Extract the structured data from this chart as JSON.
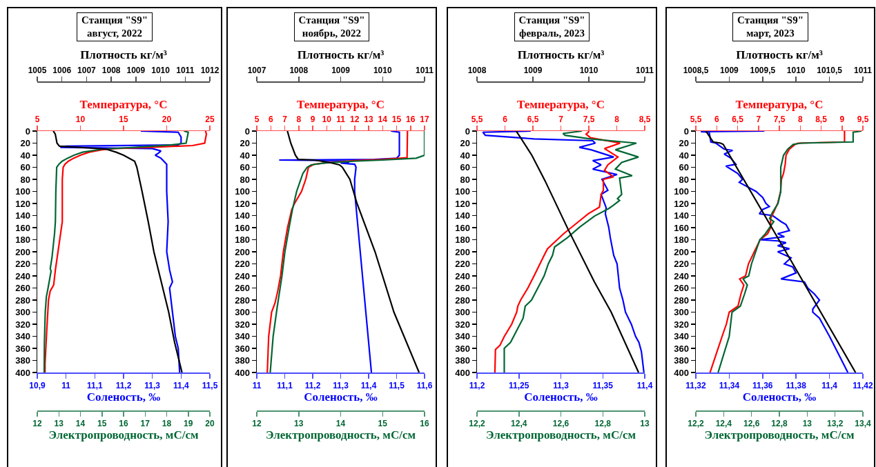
{
  "chart_data": [
    {
      "type": "line",
      "title": "Станция \"S9\"",
      "subtitle": "август, 2022",
      "xlabel": "Соленость, ‰",
      "x2label": "Температура, °C",
      "xlim": [
        10.9,
        11.5
      ],
      "xticks": [
        {
          "value": 10.9,
          "label": "10,9"
        },
        11,
        {
          "value": 11.1,
          "label": "11,1"
        },
        {
          "value": 11.2,
          "label": "11,2"
        },
        {
          "value": 11.3,
          "label": "11,3"
        },
        {
          "value": 11.4,
          "label": "11,4"
        },
        {
          "value": 11.5,
          "label": "11,5"
        }
      ],
      "x2lim": [
        5,
        25
      ],
      "x2ticks": [
        5,
        10,
        15,
        20,
        25
      ],
      "ylim": [
        400,
        0
      ],
      "yticks": [
        0,
        20,
        40,
        60,
        80,
        100,
        120,
        140,
        160,
        180,
        200,
        220,
        240,
        260,
        280,
        300,
        320,
        340,
        360,
        380,
        400
      ],
      "series": [
        {
          "color": "#ff0000",
          "axis": "x2",
          "x": [
            24.5,
            24.6,
            24.4,
            23,
            18,
            14,
            12.5,
            11,
            10,
            9.2,
            8.6,
            8.2,
            8.0,
            7.9,
            7.9,
            7.8,
            7.6,
            7.4,
            7.1,
            6.9,
            6.5,
            6.3,
            6.1,
            5.9,
            5.9
          ],
          "values": [
            0,
            5,
            20,
            24,
            27,
            29,
            31,
            35,
            40,
            45,
            50,
            55,
            60,
            80,
            150,
            160,
            180,
            200,
            230,
            255,
            265,
            280,
            330,
            385,
            400
          ]
        },
        {
          "color": "#0000ff",
          "x": [
            11.26,
            11.39,
            11.4,
            11.4,
            11.39,
            11.0,
            10.98,
            11.3,
            11.33,
            11.32,
            11.31,
            11.33,
            11.34,
            11.35,
            11.35,
            11.355,
            11.35,
            11.36,
            11.37,
            11.36,
            11.37,
            11.38,
            11.39,
            11.395
          ],
          "values": [
            0,
            2,
            10,
            20,
            23,
            25,
            27,
            29,
            33,
            37,
            40,
            45,
            50,
            55,
            100,
            150,
            200,
            230,
            250,
            260,
            300,
            340,
            360,
            400
          ]
        }
      ]
    },
    {
      "type": "line",
      "tick_labels": "x",
      "xlabel": "Электропроводность, мС/см",
      "x2label": "Плотность кг/м³",
      "xlim": [
        12,
        20
      ],
      "xticks": [
        12,
        13,
        14,
        15,
        16,
        17,
        18,
        19,
        20
      ],
      "x2lim": [
        1005,
        1012
      ],
      "x2ticks": [
        1005,
        1006,
        1007,
        1008,
        1009,
        1010,
        1011,
        1012
      ],
      "ylim": [
        400,
        0
      ],
      "yticks": [
        0,
        20,
        40,
        60,
        80,
        100,
        120,
        140,
        160,
        180,
        200,
        220,
        240,
        260,
        280,
        300,
        320,
        340,
        360,
        380,
        400
      ],
      "series": [
        {
          "color": "#000000",
          "axis": "x2",
          "x": [
            1005.65,
            1005.73,
            1005.8,
            1005.9,
            1007.1,
            1007.8,
            1008.2,
            1008.5,
            1008.95,
            1009.04,
            1009.25,
            1009.5,
            1009.73,
            1009.91,
            1010.33,
            1010.57,
            1010.87
          ],
          "values": [
            0,
            5,
            20,
            25,
            28,
            30,
            35,
            40,
            50,
            60,
            100,
            150,
            200,
            230,
            300,
            350,
            400
          ]
        },
        {
          "color": "#006633",
          "x": [
            18.8,
            19.0,
            18.9,
            18.2,
            16.5,
            15.0,
            14.1,
            13.7,
            13.4,
            13.15,
            13.0,
            12.9,
            12.86,
            12.84,
            12.8,
            12.74,
            12.68,
            12.6,
            12.64,
            12.6,
            12.5,
            12.42,
            12.37,
            12.33,
            12.32
          ],
          "values": [
            0,
            2,
            20,
            23,
            27,
            30,
            35,
            40,
            45,
            50,
            55,
            60,
            100,
            150,
            170,
            190,
            210,
            228,
            232,
            240,
            260,
            275,
            300,
            350,
            400
          ]
        }
      ]
    },
    {
      "type": "line",
      "title": "Станция \"S9\"",
      "subtitle": "ноябрь, 2022",
      "xlabel": "Соленость, ‰",
      "x2label": "Температура, °C",
      "xlim": [
        11,
        11.6
      ],
      "xticks": [
        11,
        {
          "value": 11.1,
          "label": "11,1"
        },
        {
          "value": 11.2,
          "label": "11,2"
        },
        {
          "value": 11.3,
          "label": "11,3"
        },
        {
          "value": 11.4,
          "label": "11,4"
        },
        {
          "value": 11.5,
          "label": "11,5"
        },
        {
          "value": 11.6,
          "label": "11,6"
        }
      ],
      "x2lim": [
        5,
        17
      ],
      "x2ticks": [
        5,
        6,
        7,
        8,
        9,
        10,
        11,
        12,
        13,
        14,
        15,
        16,
        17
      ],
      "ylim": [
        400,
        0
      ],
      "yticks": [
        0,
        20,
        40,
        60,
        80,
        100,
        120,
        140,
        160,
        180,
        200,
        220,
        240,
        260,
        280,
        300,
        320,
        340,
        360,
        380,
        400
      ],
      "series": [
        {
          "color": "#ff0000",
          "axis": "x2",
          "x": [
            15.78,
            15.75,
            14,
            12,
            10.2,
            9.1,
            8.7,
            8.5,
            8.2,
            7.7,
            7.5,
            7.2,
            6.9,
            6.7,
            6.5,
            6.3,
            6.06,
            5.85,
            5.75
          ],
          "values": [
            0,
            44,
            47,
            49,
            52,
            55,
            60,
            80,
            100,
            120,
            130,
            160,
            200,
            240,
            265,
            285,
            300,
            340,
            400
          ]
        },
        {
          "color": "#0000ff",
          "x": [
            11.48,
            11.51,
            11.51,
            11.5,
            11.42,
            11.08,
            11.31,
            11.33,
            11.3,
            11.35,
            11.355,
            11.35,
            11.35,
            11.36,
            11.37,
            11.38,
            11.39,
            11.4,
            11.41
          ],
          "values": [
            0,
            2,
            40,
            45,
            47,
            48,
            49,
            52,
            53,
            55,
            60,
            80,
            100,
            150,
            200,
            250,
            300,
            350,
            400
          ]
        }
      ]
    },
    {
      "type": "line",
      "tick_labels": "x",
      "xlabel": "Электропроводность, мС/см",
      "x2label": "Плотность кг/м³",
      "xlim": [
        12,
        16
      ],
      "xticks": [
        12,
        13,
        14,
        15,
        16
      ],
      "x2lim": [
        1007,
        1011
      ],
      "x2ticks": [
        1007,
        1008,
        1009,
        1010,
        1011
      ],
      "ylim": [
        400,
        0
      ],
      "yticks": [
        0,
        20,
        40,
        60,
        80,
        100,
        120,
        140,
        160,
        180,
        200,
        220,
        240,
        260,
        280,
        300,
        320,
        340,
        360,
        380,
        400
      ],
      "series": [
        {
          "color": "#000000",
          "axis": "x2",
          "x": [
            1007.73,
            1007.81,
            1007.92,
            1007.99,
            1008.37,
            1008.73,
            1008.97,
            1009.04,
            1009.22,
            1009.39,
            1009.82,
            1010.27,
            1010.87
          ],
          "values": [
            0,
            20,
            40,
            47,
            48,
            52,
            56,
            60,
            80,
            120,
            200,
            300,
            400
          ]
        },
        {
          "color": "#006633",
          "x": [
            16.0,
            16.0,
            15.8,
            15,
            14.3,
            13.6,
            13.3,
            13.2,
            13.1,
            12.95,
            12.85,
            12.77,
            12.67,
            12.6,
            12.49,
            12.39,
            12.32
          ],
          "values": [
            0,
            40,
            45,
            48,
            50,
            53,
            56,
            60,
            70,
            100,
            130,
            160,
            200,
            240,
            290,
            340,
            400
          ]
        }
      ]
    },
    {
      "type": "line",
      "title": "Станция \"S9\"",
      "subtitle": "февраль, 2023",
      "xlabel": "Соленость, ‰",
      "x2label": "Температура, °C",
      "xlim": [
        11.2,
        11.4
      ],
      "xticks": [
        {
          "value": 11.2,
          "label": "11,2"
        },
        {
          "value": 11.25,
          "label": "11,25"
        },
        {
          "value": 11.3,
          "label": "11,3"
        },
        {
          "value": 11.35,
          "label": "11,35"
        },
        {
          "value": 11.4,
          "label": "11,4"
        }
      ],
      "x2lim": [
        5.5,
        8.5
      ],
      "x2ticks": [
        {
          "value": 5.5,
          "label": "5,5"
        },
        6,
        {
          "value": 6.5,
          "label": "6,5"
        },
        7,
        {
          "value": 7.5,
          "label": "7,5"
        },
        8,
        {
          "value": 8.5,
          "label": "8,5"
        }
      ],
      "ylim": [
        400,
        0
      ],
      "yticks": [
        0,
        20,
        40,
        60,
        80,
        100,
        120,
        140,
        160,
        180,
        200,
        220,
        240,
        260,
        280,
        300,
        320,
        340,
        360,
        380,
        400
      ],
      "series": [
        {
          "color": "#ff0000",
          "axis": "x2",
          "x": [
            7.5,
            7.49,
            7.45,
            7.53,
            8.06,
            7.78,
            8.02,
            7.84,
            7.78,
            7.94,
            7.76,
            7.76,
            7.72,
            7.69,
            7.49,
            7.29,
            7.05,
            6.76,
            6.7,
            6.52,
            6.41,
            6.28,
            6.23,
            6.21,
            6.12,
            5.99,
            5.91,
            5.83,
            5.82
          ],
          "values": [
            0,
            2,
            5,
            11,
            20,
            29,
            43,
            56,
            65,
            76,
            80,
            98,
            105,
            126,
            137,
            152,
            170,
            195,
            206,
            240,
            260,
            280,
            290,
            300,
            320,
            340,
            355,
            362,
            400
          ]
        },
        {
          "color": "#0000ff",
          "x": [
            11.264,
            11.207,
            11.21,
            11.268,
            11.338,
            11.341,
            11.322,
            11.336,
            11.363,
            11.338,
            11.348,
            11.338,
            11.367,
            11.349,
            11.356,
            11.348,
            11.354,
            11.353,
            11.357,
            11.359,
            11.363,
            11.367,
            11.37,
            11.374,
            11.377,
            11.384,
            11.389,
            11.393,
            11.396,
            11.399
          ],
          "values": [
            0,
            2,
            7,
            13,
            16,
            20,
            27,
            31,
            43,
            49,
            56,
            63,
            72,
            80,
            98,
            105,
            127,
            137,
            159,
            177,
            206,
            220,
            260,
            280,
            300,
            320,
            340,
            350,
            365,
            400
          ]
        }
      ]
    },
    {
      "type": "line",
      "tick_labels": "x",
      "xlabel": "Электропроводность, мС/см",
      "x2label": "Плотность кг/м³",
      "xlim": [
        12.2,
        13
      ],
      "xticks": [
        {
          "value": 12.2,
          "label": "12,2"
        },
        {
          "value": 12.4,
          "label": "12,4"
        },
        {
          "value": 12.6,
          "label": "12,6"
        },
        {
          "value": 12.8,
          "label": "12,8"
        },
        13
      ],
      "x2lim": [
        1008,
        1011
      ],
      "x2ticks": [
        1008,
        1009,
        1010,
        1011
      ],
      "ylim": [
        400,
        0
      ],
      "yticks": [
        0,
        20,
        40,
        60,
        80,
        100,
        120,
        140,
        160,
        180,
        200,
        220,
        240,
        260,
        280,
        300,
        320,
        340,
        360,
        380,
        400
      ],
      "series": [
        {
          "color": "#000000",
          "axis": "x2",
          "x": [
            1008.7,
            1008.78,
            1008.98,
            1009.22,
            1009.63,
            1010.1,
            1010.4,
            1010.89
          ],
          "values": [
            0,
            11,
            40,
            83,
            163,
            250,
            300,
            400
          ]
        },
        {
          "color": "#006633",
          "x": [
            12.7,
            12.61,
            12.62,
            12.74,
            12.96,
            12.86,
            12.97,
            12.89,
            12.86,
            12.94,
            12.88,
            12.89,
            12.87,
            12.88,
            12.85,
            12.83,
            12.76,
            12.69,
            12.63,
            12.57,
            12.56,
            12.54,
            12.52,
            12.49,
            12.46,
            12.43,
            12.42,
            12.39,
            12.36,
            12.33,
            12.33
          ],
          "values": [
            0,
            4,
            7,
            13,
            20,
            31,
            43,
            52,
            63,
            74,
            78,
            105,
            112,
            115,
            123,
            128,
            141,
            159,
            177,
            192,
            206,
            220,
            240,
            260,
            280,
            290,
            310,
            330,
            350,
            360,
            400
          ]
        }
      ]
    },
    {
      "type": "line",
      "title": "Станция \"S9\"",
      "subtitle": "март, 2023",
      "xlabel": "Соленость, ‰",
      "x2label": "Температура, °C",
      "xlim": [
        11.32,
        11.42
      ],
      "xticks": [
        {
          "value": 11.32,
          "label": "11,32"
        },
        {
          "value": 11.34,
          "label": "11,34"
        },
        {
          "value": 11.36,
          "label": "11,36"
        },
        {
          "value": 11.38,
          "label": "11,38"
        },
        {
          "value": 11.4,
          "label": "11,4"
        },
        {
          "value": 11.42,
          "label": "11,42"
        }
      ],
      "x2lim": [
        5.5,
        9.5
      ],
      "x2ticks": [
        {
          "value": 5.5,
          "label": "5,5"
        },
        6,
        {
          "value": 6.5,
          "label": "6,5"
        },
        7,
        {
          "value": 7.5,
          "label": "7,5"
        },
        8,
        {
          "value": 8.5,
          "label": "8,5"
        },
        9,
        {
          "value": 9.5,
          "label": "9,5"
        }
      ],
      "ylim": [
        400,
        0
      ],
      "yticks": [
        0,
        20,
        40,
        60,
        80,
        100,
        120,
        140,
        160,
        180,
        200,
        220,
        240,
        260,
        280,
        300,
        320,
        340,
        360,
        380,
        400
      ],
      "series": [
        {
          "color": "#ff0000",
          "axis": "x2",
          "x": [
            9.06,
            9.06,
            7.95,
            7.88,
            7.74,
            7.66,
            7.64,
            7.6,
            7.55,
            7.53,
            7.46,
            7.36,
            7.29,
            7.29,
            7.22,
            7.04,
            6.97,
            6.9,
            6.76,
            6.69,
            6.55,
            6.65,
            6.58,
            6.51,
            6.3,
            6.23,
            6.13,
            5.84
          ],
          "values": [
            0,
            18,
            20,
            22,
            30,
            40,
            55,
            70,
            80,
            100,
            120,
            135,
            145,
            160,
            170,
            180,
            190,
            200,
            220,
            240,
            245,
            255,
            270,
            290,
            300,
            320,
            340,
            400
          ]
        },
        {
          "color": "#0000ff",
          "x": [
            11.361,
            11.323,
            11.328,
            11.329,
            11.332,
            11.337,
            11.342,
            11.337,
            11.341,
            11.344,
            11.338,
            11.345,
            11.348,
            11.346,
            11.356,
            11.36,
            11.362,
            11.364,
            11.36,
            11.358,
            11.366,
            11.371,
            11.374,
            11.376,
            11.369,
            11.373,
            11.358,
            11.369,
            11.374,
            11.369,
            11.376,
            11.369,
            11.377,
            11.373,
            11.378,
            11.38,
            11.371,
            11.385,
            11.387,
            11.391,
            11.394,
            11.39,
            11.39,
            11.394,
            11.396,
            11.4,
            11.411
          ],
          "values": [
            0,
            1,
            2,
            18,
            20,
            30,
            32,
            38,
            45,
            55,
            58,
            70,
            80,
            85,
            100,
            110,
            120,
            125,
            130,
            137,
            140,
            150,
            155,
            165,
            170,
            175,
            180,
            182,
            185,
            190,
            195,
            200,
            210,
            220,
            225,
            235,
            245,
            250,
            260,
            270,
            280,
            295,
            300,
            310,
            320,
            340,
            400
          ]
        }
      ]
    },
    {
      "type": "line",
      "tick_labels": "x",
      "xlabel": "Электропроводность, мС/см",
      "x2label": "Плотность кг/м³",
      "xlim": [
        12.2,
        13.4
      ],
      "xticks": [
        {
          "value": 12.2,
          "label": "12,2"
        },
        {
          "value": 12.4,
          "label": "12,4"
        },
        {
          "value": 12.6,
          "label": "12,6"
        },
        {
          "value": 12.8,
          "label": "12,8"
        },
        13,
        {
          "value": 13.2,
          "label": "13,2"
        },
        {
          "value": 13.4,
          "label": "13,4"
        }
      ],
      "x2lim": [
        1008.5,
        1011
      ],
      "x2ticks": [
        {
          "value": 1008.5,
          "label": "1008,5"
        },
        1009,
        {
          "value": 1009.5,
          "label": "1009,5"
        },
        1010,
        {
          "value": 1010.5,
          "label": "1010,5"
        },
        1011
      ],
      "ylim": [
        400,
        0
      ],
      "yticks": [
        0,
        20,
        40,
        60,
        80,
        100,
        120,
        140,
        160,
        180,
        200,
        220,
        240,
        260,
        280,
        300,
        320,
        340,
        360,
        380,
        400
      ],
      "series": [
        {
          "color": "#000000",
          "axis": "x2",
          "x": [
            1008.65,
            1008.76,
            1008.87,
            1008.91,
            1009.9,
            1010.89
          ],
          "values": [
            0,
            18,
            20,
            22,
            210,
            400
          ]
        },
        {
          "color": "#006633",
          "x": [
            13.39,
            13.33,
            13.33,
            12.96,
            12.9,
            12.86,
            12.83,
            12.81,
            12.81,
            12.79,
            12.75,
            12.73,
            12.76,
            12.7,
            12.66,
            12.63,
            12.6,
            12.58,
            12.54,
            12.57,
            12.55,
            12.52,
            12.46,
            12.44,
            12.36
          ],
          "values": [
            0,
            2,
            18,
            20,
            22,
            30,
            40,
            60,
            100,
            120,
            135,
            145,
            150,
            170,
            180,
            200,
            220,
            240,
            245,
            255,
            270,
            290,
            300,
            340,
            400
          ]
        }
      ]
    }
  ]
}
